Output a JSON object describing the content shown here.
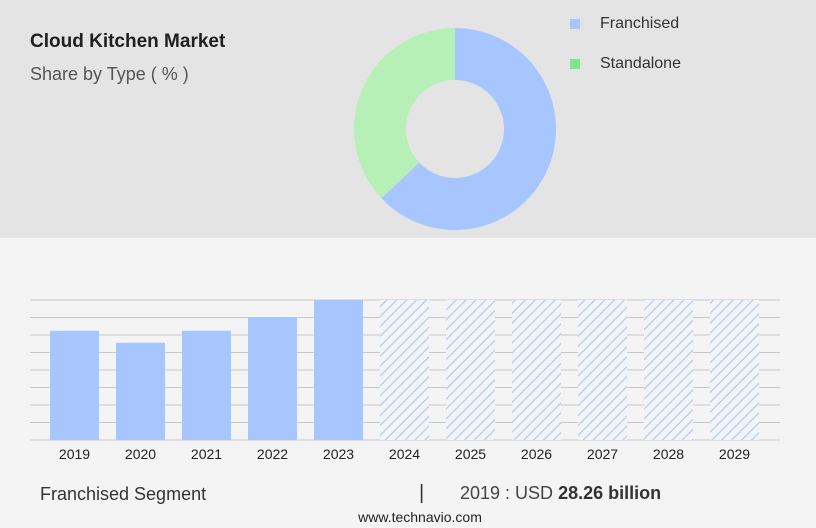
{
  "title": "Cloud Kitchen Market",
  "subtitle": "Share by Type ( % )",
  "legend": [
    {
      "label": "Franchised",
      "color": "#a7c6ff"
    },
    {
      "label": "Standalone",
      "color": "#7ee68a"
    }
  ],
  "footer": {
    "segment": "Franchised Segment",
    "separator": "|",
    "year_label": "2019 : USD",
    "value": "28.26 billion",
    "url": "www.technavio.com"
  },
  "chart_data": [
    {
      "type": "pie",
      "donut": true,
      "series": [
        {
          "name": "Franchised",
          "value": 63,
          "color": "#a7c6ff"
        },
        {
          "name": "Standalone",
          "value": 37,
          "color": "#b7f0b7"
        }
      ]
    },
    {
      "type": "bar",
      "categories": [
        "2019",
        "2020",
        "2021",
        "2022",
        "2023",
        "2024",
        "2025",
        "2026",
        "2027",
        "2028",
        "2029"
      ],
      "values": [
        64,
        57,
        64,
        72,
        82,
        null,
        null,
        null,
        null,
        null,
        null
      ],
      "forecast_start": "2024",
      "ylim": [
        0,
        82
      ],
      "grid": true,
      "bar_color": "#a7c6ff",
      "forecast_color": "#a7c6ff"
    }
  ]
}
